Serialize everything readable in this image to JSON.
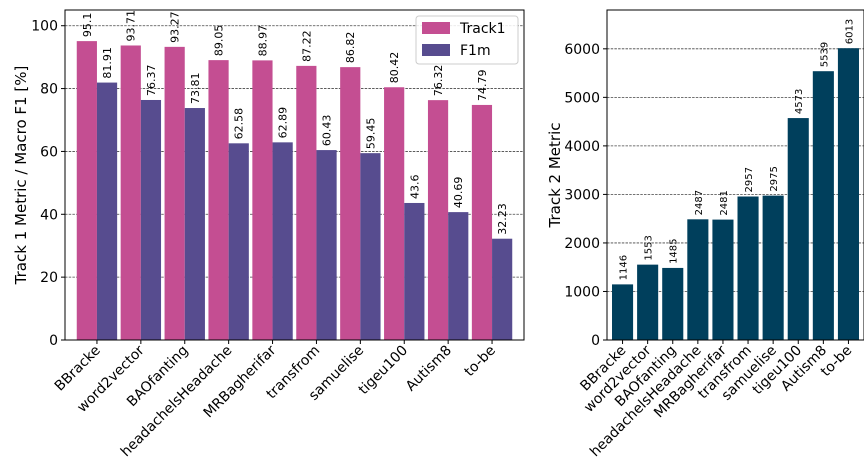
{
  "chart_data": [
    {
      "type": "bar",
      "categories": [
        "BBracke",
        "word2vector",
        "BAOfanting",
        "headachelsHeadache",
        "MRBagherifar",
        "transfrom",
        "samuelise",
        "tigeu100",
        "Autism8",
        "to-be"
      ],
      "series": [
        {
          "name": "Track1",
          "values": [
            95.1,
            93.71,
            93.27,
            89.05,
            88.97,
            87.22,
            86.82,
            80.42,
            76.32,
            74.79
          ],
          "labels": [
            "95.1",
            "93.71",
            "93.27",
            "89.05",
            "88.97",
            "87.22",
            "86.82",
            "80.42",
            "76.32",
            "74.79"
          ],
          "color": "#c44e92"
        },
        {
          "name": "F1m",
          "values": [
            81.91,
            76.37,
            73.81,
            62.58,
            62.89,
            60.43,
            59.45,
            43.6,
            40.69,
            32.23
          ],
          "labels": [
            "81.91",
            "76.37",
            "73.81",
            "62.58",
            "62.89",
            "60.43",
            "59.45",
            "43.6",
            "40.69",
            "32.23"
          ],
          "color": "#574c8f"
        }
      ],
      "ylabel": "Track 1 Metric / Macro F1 [%]",
      "ylim": [
        0,
        105
      ],
      "yticks": [
        0,
        20,
        40,
        60,
        80,
        100
      ],
      "ytick_labels": [
        "0",
        "20",
        "40",
        "60",
        "80",
        "100"
      ],
      "grid": true,
      "legend": "top-right"
    },
    {
      "type": "bar",
      "categories": [
        "BBracke",
        "word2vector",
        "BAOfanting",
        "headachelsHeadache",
        "MRBagherifar",
        "transfrom",
        "samuelise",
        "tigeu100",
        "Autism8",
        "to-be"
      ],
      "series": [
        {
          "values": [
            1146,
            1553,
            1485,
            2487,
            2481,
            2957,
            2975,
            4573,
            5539,
            6013
          ],
          "labels": [
            "1146",
            "1553",
            "1485",
            "2487",
            "2481",
            "2957",
            "2975",
            "4573",
            "5539",
            "6013"
          ],
          "color": "#003f5c"
        }
      ],
      "ylabel": "Track 2 Metric",
      "ylim": [
        0,
        6800
      ],
      "yticks": [
        0,
        1000,
        2000,
        3000,
        4000,
        5000,
        6000
      ],
      "ytick_labels": [
        "0",
        "1000",
        "2000",
        "3000",
        "4000",
        "5000",
        "6000"
      ],
      "grid": true
    }
  ]
}
